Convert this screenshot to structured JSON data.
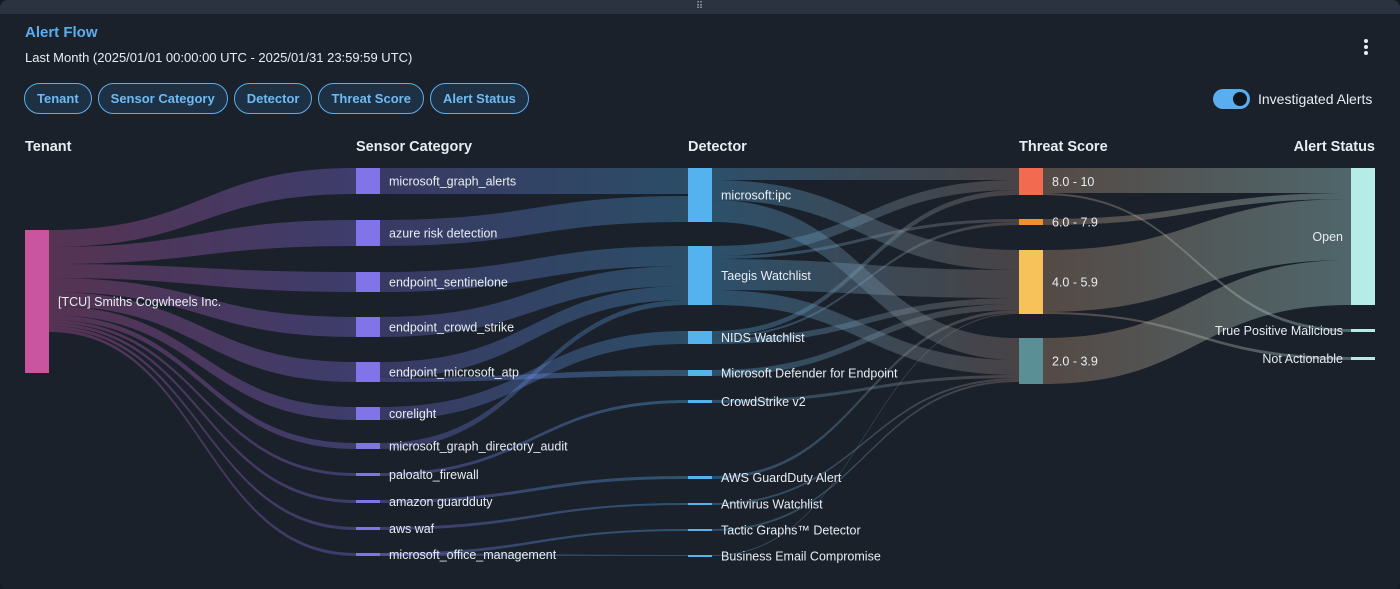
{
  "panel": {
    "title": "Alert Flow",
    "subtitle": "Last Month (2025/01/01 00:00:00 UTC - 2025/01/31 23:59:59 UTC)",
    "menu_icon": "kebab-menu-icon",
    "drag_icon": "drag-handle-icon"
  },
  "chips": [
    "Tenant",
    "Sensor Category",
    "Detector",
    "Threat Score",
    "Alert Status"
  ],
  "toggle": {
    "label": "Investigated Alerts",
    "on": true
  },
  "colors": {
    "accent": "#5aaeef",
    "tenant": "#c9559f",
    "sensor": "#8173e8",
    "detector": "#54b2ee",
    "status": "#b6ece7"
  },
  "columns": [
    "Tenant",
    "Sensor Category",
    "Detector",
    "Threat Score",
    "Alert Status"
  ],
  "nodes": {
    "tenant": [
      {
        "label": "[TCU] Smiths Cogwheels Inc.",
        "value": 143
      }
    ],
    "sensor": [
      {
        "label": "microsoft_graph_alerts",
        "value": 26
      },
      {
        "label": "azure risk detection",
        "value": 26
      },
      {
        "label": "endpoint_sentinelone",
        "value": 20
      },
      {
        "label": "endpoint_crowd_strike",
        "value": 20
      },
      {
        "label": "endpoint_microsoft_atp",
        "value": 20
      },
      {
        "label": "corelight",
        "value": 13
      },
      {
        "label": "microsoft_graph_directory_audit",
        "value": 6
      },
      {
        "label": "paloalto_firewall",
        "value": 3
      },
      {
        "label": "amazon guardduty",
        "value": 3
      },
      {
        "label": "aws waf",
        "value": 3
      },
      {
        "label": "microsoft_office_management",
        "value": 3
      }
    ],
    "detector": [
      {
        "label": "microsoft:ipc",
        "value": 54
      },
      {
        "label": "Taegis Watchlist",
        "value": 59
      },
      {
        "label": "NIDS Watchlist",
        "value": 13
      },
      {
        "label": "Microsoft Defender for Endpoint",
        "value": 6
      },
      {
        "label": "CrowdStrike v2",
        "value": 3
      },
      {
        "label": "AWS GuardDuty Alert",
        "value": 3
      },
      {
        "label": "Antivirus Watchlist",
        "value": 2
      },
      {
        "label": "Tactic Graphs™ Detector",
        "value": 2
      },
      {
        "label": "Business Email Compromise",
        "value": 1
      }
    ],
    "threat": [
      {
        "label": "8.0 - 10",
        "value": 27,
        "color": "#f26b50"
      },
      {
        "label": "6.0 - 7.9",
        "value": 6,
        "color": "#f0902d"
      },
      {
        "label": "4.0 - 5.9",
        "value": 64,
        "color": "#f7c25a"
      },
      {
        "label": "2.0 - 3.9",
        "value": 46,
        "color": "#5a8f96"
      }
    ],
    "status": [
      {
        "label": "Open",
        "value": 137
      },
      {
        "label": "True Positive Malicious",
        "value": 3
      },
      {
        "label": "Not Actionable",
        "value": 3
      }
    ]
  }
}
